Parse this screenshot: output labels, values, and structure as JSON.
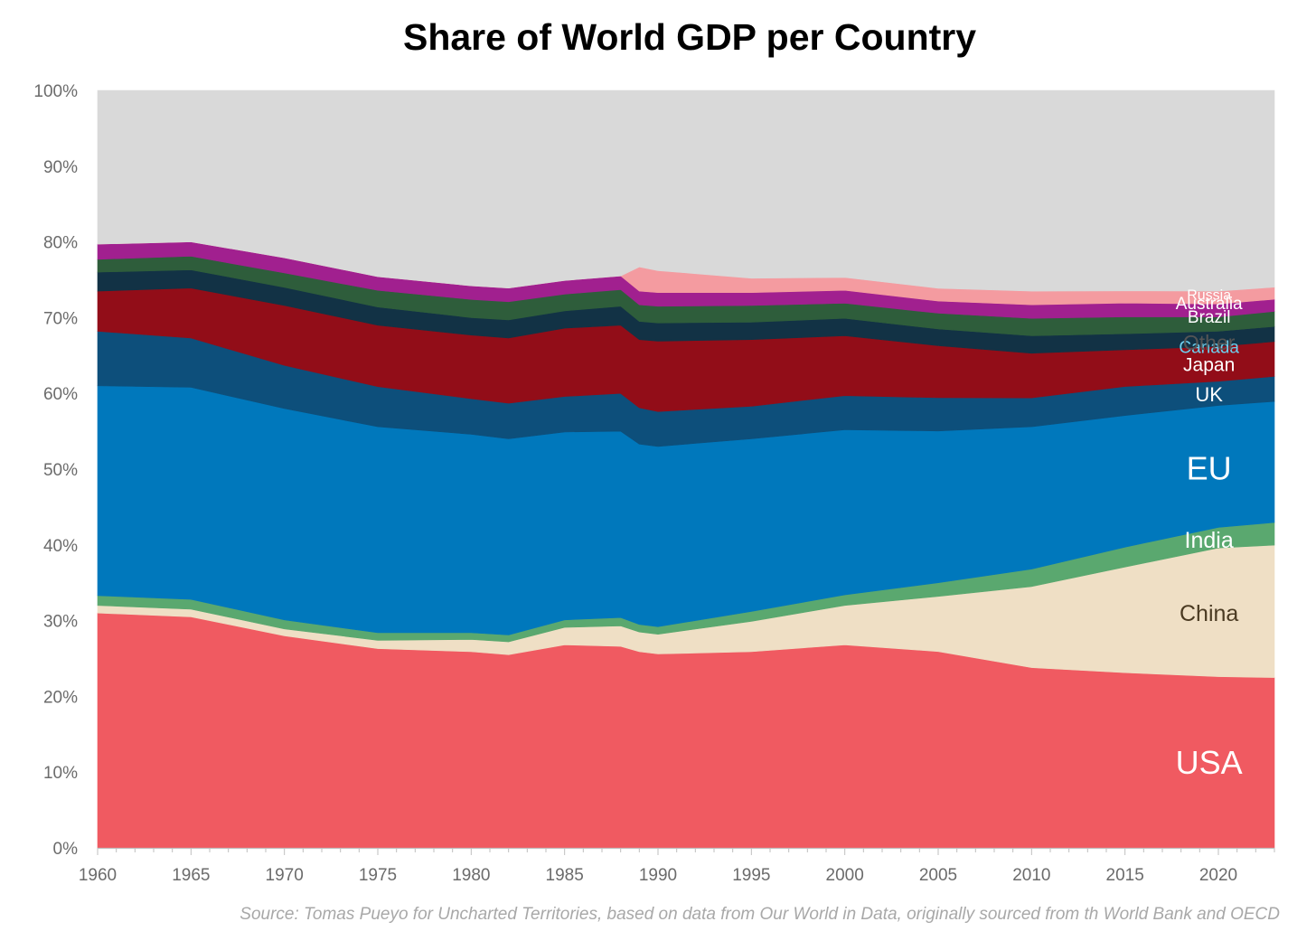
{
  "chart_data": {
    "type": "area",
    "stacked": true,
    "normalized_percent": true,
    "title": "Share of World GDP per Country",
    "source": "Source: Tomas Pueyo for Uncharted Territories, based on data from Our World in Data, originally sourced from th World Bank and OECD",
    "xlabel": "",
    "ylabel": "",
    "xlim": [
      1960,
      2023
    ],
    "ylim": [
      0,
      100
    ],
    "y_ticks": [
      0,
      10,
      20,
      30,
      40,
      50,
      60,
      70,
      80,
      90,
      100
    ],
    "y_tick_labels": [
      "0%",
      "10%",
      "20%",
      "30%",
      "40%",
      "50%",
      "60%",
      "70%",
      "80%",
      "90%",
      "100%"
    ],
    "x_ticks": [
      1960,
      1965,
      1970,
      1975,
      1980,
      1985,
      1990,
      1995,
      2000,
      2005,
      2010,
      2015,
      2020
    ],
    "x_tick_labels": [
      "1960",
      "1965",
      "1970",
      "1975",
      "1980",
      "1985",
      "1990",
      "1995",
      "2000",
      "2005",
      "2010",
      "2015",
      "2020"
    ],
    "grid": false,
    "legend": "inline labels at right",
    "x": [
      1960,
      1965,
      1970,
      1975,
      1980,
      1982,
      1985,
      1988,
      1989,
      1990,
      1995,
      2000,
      2005,
      2010,
      2015,
      2020,
      2023
    ],
    "series": [
      {
        "name": "USA",
        "label": "USA",
        "color": "#f05a61",
        "label_color": "#ffffff",
        "label_size": 36,
        "values": [
          31.0,
          30.5,
          28.0,
          26.3,
          25.9,
          25.5,
          26.8,
          26.6,
          25.9,
          25.6,
          25.9,
          26.8,
          26.0,
          23.8,
          22.9,
          22.6,
          22.5
        ]
      },
      {
        "name": "China",
        "label": "China",
        "color": "#efdfc5",
        "label_color": "#4a3a22",
        "label_size": 25,
        "values": [
          1.0,
          1.0,
          0.9,
          1.1,
          1.6,
          1.7,
          2.3,
          2.7,
          2.6,
          2.6,
          4.0,
          5.2,
          7.3,
          10.7,
          13.8,
          17.0,
          17.5
        ]
      },
      {
        "name": "India",
        "label": "India",
        "color": "#5aa86f",
        "label_color": "#ffffff",
        "label_size": 25,
        "values": [
          1.3,
          1.3,
          1.2,
          1.0,
          0.9,
          0.9,
          1.0,
          1.1,
          1.0,
          1.0,
          1.3,
          1.4,
          1.8,
          2.3,
          2.6,
          2.7,
          3.0
        ]
      },
      {
        "name": "EU",
        "label": "EU",
        "color": "#0078bc",
        "label_color": "#ffffff",
        "label_size": 36,
        "values": [
          27.7,
          28.0,
          27.9,
          27.2,
          26.2,
          25.9,
          24.8,
          24.6,
          23.8,
          23.8,
          22.8,
          21.8,
          20.1,
          18.8,
          17.2,
          16.1,
          16.0
        ]
      },
      {
        "name": "UK",
        "label": "UK",
        "color": "#0d4f7b",
        "label_color": "#ffffff",
        "label_size": 22,
        "values": [
          7.2,
          6.5,
          5.7,
          5.3,
          4.7,
          4.7,
          4.7,
          5.0,
          4.8,
          4.6,
          4.3,
          4.5,
          4.4,
          3.8,
          3.8,
          3.2,
          3.3
        ]
      },
      {
        "name": "Japan",
        "label": "Japan",
        "color": "#920d18",
        "label_color": "#ffffff",
        "label_size": 21,
        "values": [
          5.3,
          6.6,
          7.9,
          8.1,
          8.4,
          8.6,
          9.0,
          9.0,
          9.0,
          9.3,
          8.8,
          7.9,
          6.9,
          5.9,
          4.8,
          4.6,
          4.6
        ]
      },
      {
        "name": "Canada",
        "label": "Canada",
        "color": "#123245",
        "label_color": "#6ecfee",
        "label_size": 19,
        "values": [
          2.5,
          2.4,
          2.4,
          2.4,
          2.3,
          2.4,
          2.3,
          2.5,
          2.4,
          2.4,
          2.3,
          2.3,
          2.2,
          2.3,
          2.1,
          2.0,
          2.0
        ]
      },
      {
        "name": "Brazil",
        "label": "Brazil",
        "color": "#2e5d3b",
        "label_color": "#ffffff",
        "label_size": 19,
        "values": [
          1.7,
          1.8,
          1.9,
          2.2,
          2.4,
          2.4,
          2.2,
          2.2,
          2.2,
          2.2,
          2.2,
          2.0,
          2.1,
          2.3,
          2.2,
          1.9,
          2.0
        ]
      },
      {
        "name": "Australia",
        "label": "Australia",
        "color": "#a1208f",
        "label_color": "#ffffff",
        "label_size": 19,
        "values": [
          2.0,
          1.9,
          2.0,
          1.8,
          1.8,
          1.8,
          1.8,
          1.8,
          1.8,
          1.8,
          1.7,
          1.7,
          1.6,
          1.8,
          1.8,
          1.7,
          1.6
        ]
      },
      {
        "name": "Russia",
        "label": "Russia",
        "color": "#f49ba0",
        "label_color": "#ffffff",
        "label_size": 16,
        "values": [
          0.0,
          0.0,
          0.0,
          0.0,
          0.0,
          0.0,
          0.0,
          0.0,
          3.2,
          2.9,
          1.9,
          1.7,
          1.7,
          1.8,
          1.6,
          1.7,
          1.6
        ]
      },
      {
        "name": "Other",
        "label": "Other",
        "color": "#d9d9d9",
        "label_color": "#555555",
        "label_size": 23,
        "values": [
          20.3,
          20.0,
          22.1,
          24.6,
          25.8,
          26.1,
          25.1,
          24.5,
          23.3,
          23.8,
          24.8,
          24.7,
          26.2,
          26.5,
          26.2,
          26.5,
          26.0
        ]
      }
    ]
  }
}
